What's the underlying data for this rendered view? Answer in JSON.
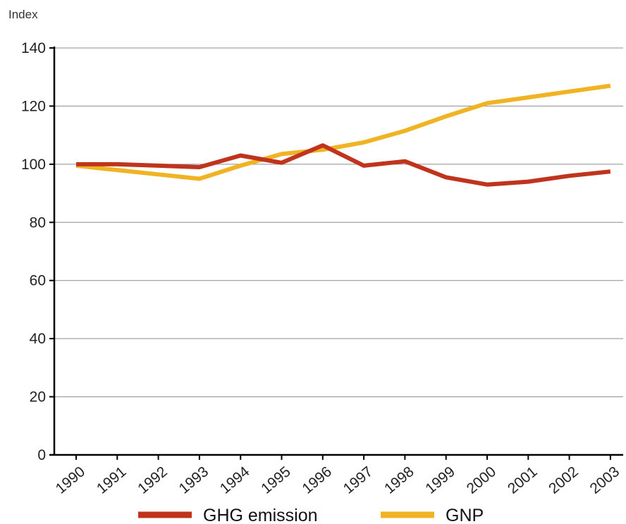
{
  "chart_data": {
    "type": "line",
    "title": "",
    "ylabel": "Index",
    "xlabel": "",
    "ylim": [
      0,
      140
    ],
    "yticks": [
      0,
      20,
      40,
      60,
      80,
      100,
      120,
      140
    ],
    "x": [
      "1990",
      "1991",
      "1992",
      "1993",
      "1994",
      "1995",
      "1996",
      "1997",
      "1998",
      "1999",
      "2000",
      "2001",
      "2002",
      "2003"
    ],
    "grid": "horizontal",
    "legend_position": "bottom",
    "series": [
      {
        "name": "GHG emission",
        "color": "#c0341d",
        "values": [
          100,
          100,
          99.5,
          99,
          103,
          100.5,
          106.5,
          99.5,
          101,
          95.5,
          93,
          94,
          96,
          97.5
        ]
      },
      {
        "name": "GNP",
        "color": "#f0b323",
        "values": [
          99.5,
          98,
          96.5,
          95,
          99.5,
          103.5,
          105,
          107.5,
          111.5,
          116.5,
          121,
          123,
          125,
          127
        ]
      }
    ]
  }
}
